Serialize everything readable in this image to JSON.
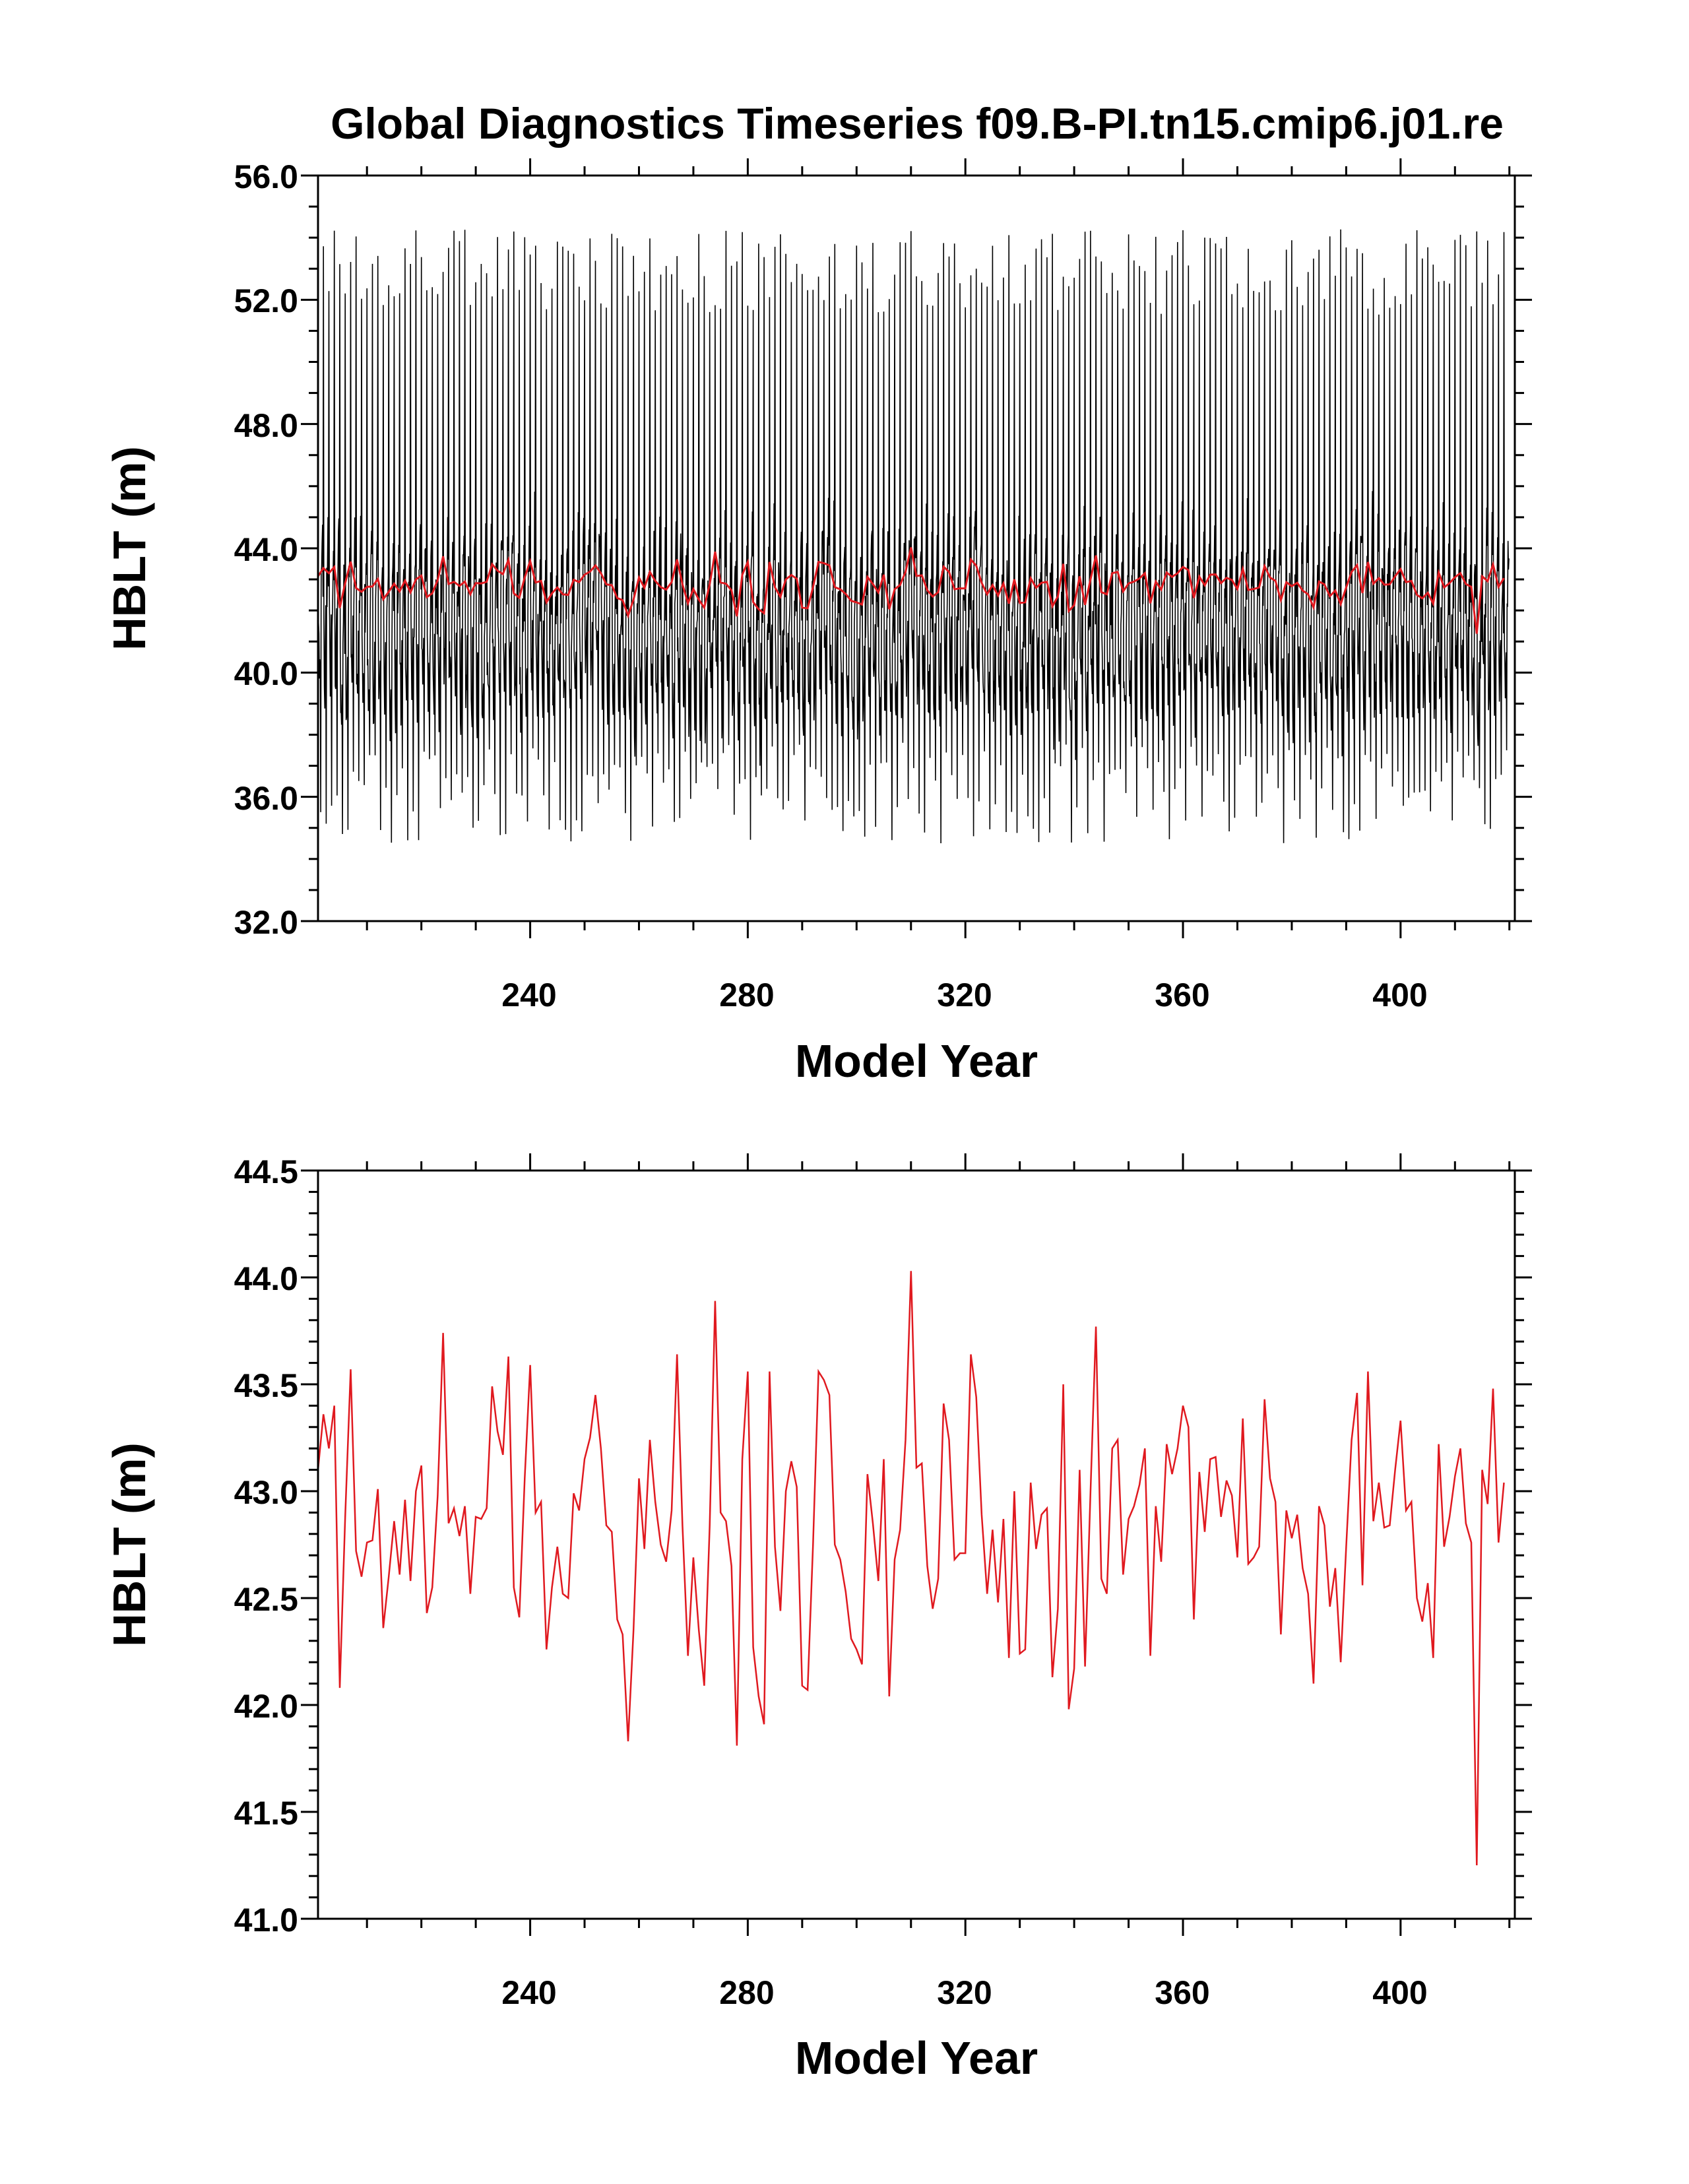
{
  "title": "Global Diagnostics Timeseries f09.B-PI.tn15.cmip6.j01.re",
  "colors": {
    "monthly": "#000000",
    "annual": "#e0191f",
    "axis": "#000000",
    "background": "#ffffff"
  },
  "chart_data": [
    {
      "type": "line",
      "panel": "top",
      "title": "Global Diagnostics Timeseries f09.B-PI.tn15.cmip6.j01.re",
      "xlabel": "Model Year",
      "ylabel": "HBLT (m)",
      "xlim": [
        201,
        421
      ],
      "ylim": [
        32.0,
        56.0
      ],
      "x_ticks": [
        "240",
        "280",
        "320",
        "360",
        "400"
      ],
      "y_ticks": [
        "32.0",
        "36.0",
        "40.0",
        "44.0",
        "48.0",
        "52.0",
        "56.0"
      ],
      "grid": false,
      "legend": "none",
      "series": [
        {
          "role": "monthly",
          "color": "#000000",
          "x_start": 201,
          "x_end": 421,
          "step": 0.0833,
          "description_values": {
            "seasonal_max_range": [
              51.5,
              55.2
            ],
            "seasonal_min_range": [
              33.2,
              38.0
            ],
            "mid_range": [
              38.0,
              45.0
            ]
          }
        },
        {
          "role": "annual",
          "color": "#e0191f",
          "x_start": 201,
          "x_end": 421
        }
      ]
    },
    {
      "type": "line",
      "panel": "bottom",
      "xlabel": "Model Year",
      "ylabel": "HBLT (m)",
      "xlim": [
        201,
        421
      ],
      "ylim": [
        41.0,
        44.5
      ],
      "x_ticks": [
        "240",
        "280",
        "320",
        "360",
        "400"
      ],
      "y_ticks": [
        "41.0",
        "41.5",
        "42.0",
        "42.5",
        "43.0",
        "43.5",
        "44.0",
        "44.5"
      ],
      "grid": false,
      "legend": "none",
      "series": [
        {
          "role": "annual",
          "color": "#e0191f",
          "x_start": 201,
          "x_end": 421,
          "values": [
            43.1,
            43.36,
            43.2,
            43.4,
            42.08,
            42.88,
            43.57,
            42.72,
            42.6,
            42.76,
            42.77,
            43.01,
            42.36,
            42.6,
            42.86,
            42.61,
            42.96,
            42.58,
            43.0,
            43.12,
            42.43,
            42.55,
            42.98,
            43.74,
            42.85,
            42.92,
            42.79,
            42.93,
            42.52,
            42.88,
            42.87,
            42.92,
            43.49,
            43.28,
            43.17,
            43.63,
            42.55,
            42.41,
            43.06,
            43.59,
            42.9,
            42.95,
            42.26,
            42.55,
            42.74,
            42.52,
            42.5,
            42.99,
            42.91,
            43.15,
            43.25,
            43.45,
            43.2,
            42.84,
            42.81,
            42.4,
            42.33,
            41.83,
            42.35,
            43.06,
            42.73,
            43.24,
            42.95,
            42.75,
            42.67,
            42.91,
            43.64,
            42.84,
            42.23,
            42.69,
            42.35,
            42.09,
            42.84,
            43.89,
            42.9,
            42.86,
            42.65,
            41.81,
            43.15,
            43.56,
            42.27,
            42.04,
            41.91,
            43.56,
            42.74,
            42.44,
            43.0,
            43.14,
            43.02,
            42.09,
            42.07,
            42.75,
            43.56,
            43.52,
            43.45,
            42.75,
            42.68,
            42.53,
            42.31,
            42.26,
            42.19,
            43.08,
            42.85,
            42.58,
            43.15,
            42.04,
            42.68,
            42.82,
            43.24,
            44.03,
            43.11,
            43.13,
            42.65,
            42.45,
            42.59,
            43.41,
            43.24,
            42.68,
            42.71,
            42.71,
            43.64,
            43.44,
            42.89,
            42.52,
            42.82,
            42.48,
            42.87,
            42.22,
            43.0,
            42.24,
            42.26,
            43.04,
            42.73,
            42.89,
            42.92,
            42.13,
            42.45,
            43.5,
            41.98,
            42.17,
            43.1,
            42.18,
            43.0,
            43.77,
            42.59,
            42.52,
            43.2,
            43.24,
            42.61,
            42.87,
            42.93,
            43.03,
            43.2,
            42.23,
            42.93,
            42.67,
            43.22,
            43.08,
            43.2,
            43.4,
            43.3,
            42.4,
            43.09,
            42.81,
            43.15,
            43.16,
            42.88,
            43.05,
            42.98,
            42.69,
            43.34,
            42.66,
            42.69,
            42.74,
            43.43,
            43.06,
            42.95,
            42.33,
            42.91,
            42.78,
            42.89,
            42.64,
            42.52,
            42.1,
            42.93,
            42.84,
            42.46,
            42.64,
            42.2,
            42.74,
            43.24,
            43.46,
            42.56,
            43.56,
            42.86,
            43.04,
            42.83,
            42.84,
            43.1,
            43.33,
            42.91,
            42.95,
            42.5,
            42.39,
            42.57,
            42.22,
            43.22,
            42.74,
            42.88,
            43.07,
            43.2,
            42.85,
            42.76,
            41.25,
            43.1,
            42.94,
            43.48,
            42.76,
            43.04
          ]
        }
      ]
    }
  ]
}
